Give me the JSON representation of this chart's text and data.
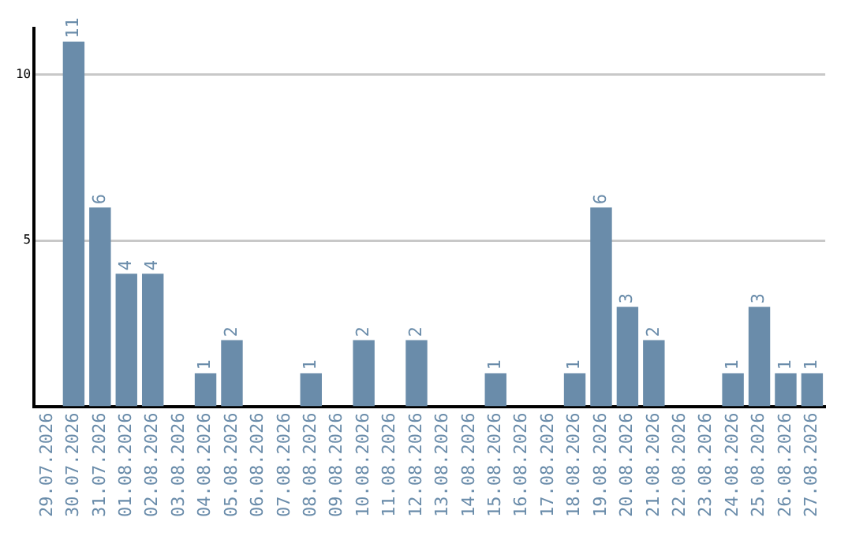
{
  "chart_data": {
    "type": "bar",
    "categories": [
      "29.07.2026",
      "30.07.2026",
      "31.07.2026",
      "01.08.2026",
      "02.08.2026",
      "03.08.2026",
      "04.08.2026",
      "05.08.2026",
      "06.08.2026",
      "07.08.2026",
      "08.08.2026",
      "09.08.2026",
      "10.08.2026",
      "11.08.2026",
      "12.08.2026",
      "13.08.2026",
      "14.08.2026",
      "15.08.2026",
      "16.08.2026",
      "17.08.2026",
      "18.08.2026",
      "19.08.2026",
      "20.08.2026",
      "21.08.2026",
      "22.08.2026",
      "23.08.2026",
      "24.08.2026",
      "25.08.2026",
      "26.08.2026",
      "27.08.2026"
    ],
    "values": [
      0,
      11,
      6,
      4,
      4,
      0,
      1,
      2,
      0,
      0,
      1,
      0,
      2,
      0,
      2,
      0,
      0,
      1,
      0,
      0,
      1,
      6,
      3,
      2,
      0,
      0,
      1,
      3,
      1,
      1
    ],
    "value_labels": [
      null,
      "11",
      "6",
      "4",
      "4",
      null,
      "1",
      "2",
      null,
      null,
      "1",
      null,
      "2",
      null,
      "2",
      null,
      null,
      "1",
      null,
      null,
      "1",
      "6",
      "3",
      "2",
      null,
      null,
      "1",
      "3",
      "1",
      "1"
    ],
    "color": "#6a8caa",
    "ylim": [
      0,
      11.4
    ],
    "yticks": [
      5,
      10
    ],
    "grid": "y",
    "legend": false
  }
}
